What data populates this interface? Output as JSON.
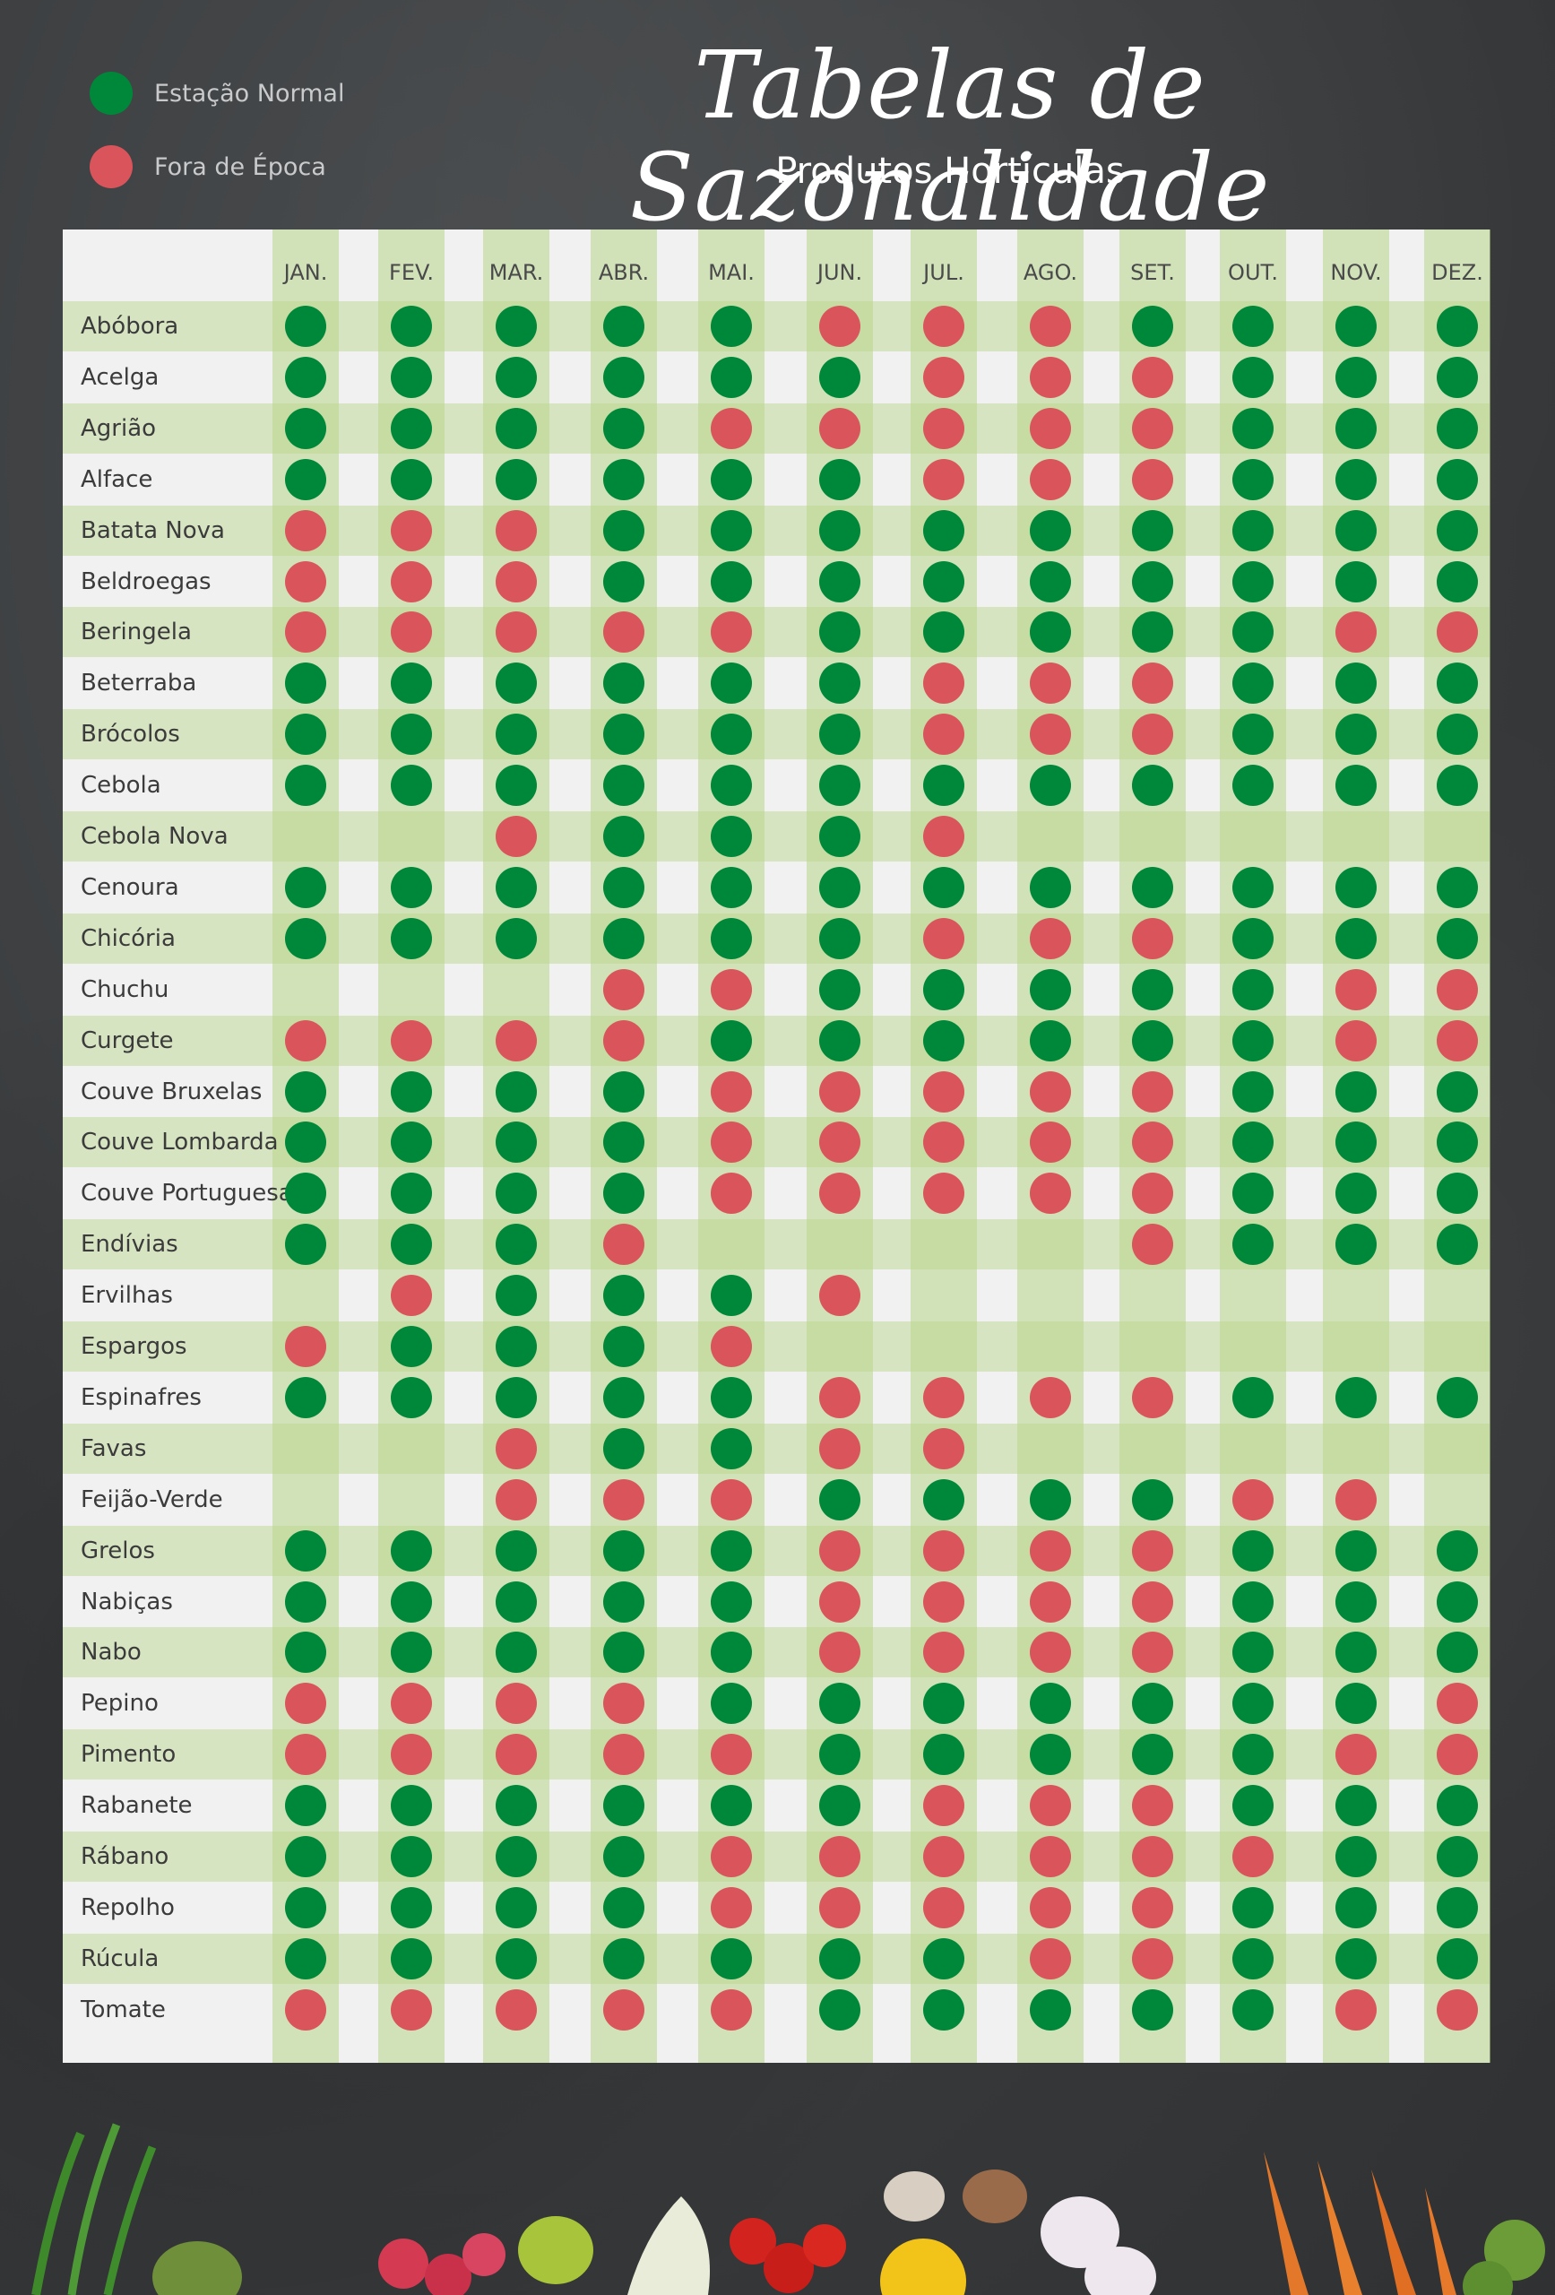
{
  "legend": [
    {
      "label": "Estação Normal",
      "color": "#00883a"
    },
    {
      "label": "Fora de Época",
      "color": "#d9555b"
    }
  ],
  "title": "Tabelas de Sazonalidade",
  "subtitle": "Produtos Hortículas",
  "colors": {
    "green": "#00883a",
    "red": "#d9555b"
  },
  "months": [
    "JAN.",
    "FEV.",
    "MAR.",
    "ABR.",
    "MAI.",
    "JUN.",
    "JUL.",
    "AGO.",
    "SET.",
    "OUT.",
    "NOV.",
    "DEZ."
  ],
  "rows": [
    {
      "name": "Abóbora",
      "cells": "GGGGGRRRGGGG"
    },
    {
      "name": "Acelga",
      "cells": "GGGGGGRRRGGG"
    },
    {
      "name": "Agrião",
      "cells": "GGGGRRRRRGGG"
    },
    {
      "name": "Alface",
      "cells": "GGGGGGRRRGGG"
    },
    {
      "name": "Batata Nova",
      "cells": "RRRGGGGGGGGG"
    },
    {
      "name": "Beldroegas",
      "cells": "RRRGGGGGGGGG"
    },
    {
      "name": "Beringela",
      "cells": "RRRRRGGGGGRR"
    },
    {
      "name": "Beterraba",
      "cells": "GGGGGGRRRGGG"
    },
    {
      "name": "Brócolos",
      "cells": "GGGGGGRRRGGG"
    },
    {
      "name": "Cebola",
      "cells": "GGGGGGGGGGGG"
    },
    {
      "name": "Cebola Nova",
      "cells": "--RGGGR-----"
    },
    {
      "name": "Cenoura",
      "cells": "GGGGGGGGGGGG"
    },
    {
      "name": "Chicória",
      "cells": "GGGGGGRRRGGG"
    },
    {
      "name": "Chuchu",
      "cells": "---RRGGGGGRR"
    },
    {
      "name": "Curgete",
      "cells": "RRRRGGGGGGRR"
    },
    {
      "name": "Couve Bruxelas",
      "cells": "GGGGRRRRRGGG"
    },
    {
      "name": "Couve Lombarda",
      "cells": "GGGGRRRRRGGG"
    },
    {
      "name": "Couve Portuguesa",
      "cells": "GGGGRRRRRGGG"
    },
    {
      "name": "Endívias",
      "cells": "GGGR----RGGG"
    },
    {
      "name": "Ervilhas",
      "cells": "-RGGGR------"
    },
    {
      "name": "Espargos",
      "cells": "RGGGR-------"
    },
    {
      "name": "Espinafres",
      "cells": "GGGGGRRRRGGG"
    },
    {
      "name": "Favas",
      "cells": "--RGGRR-----"
    },
    {
      "name": "Feijão-Verde",
      "cells": "--RRRGGGGRR-"
    },
    {
      "name": "Grelos",
      "cells": "GGGGGRRRRGGG"
    },
    {
      "name": "Nabiças",
      "cells": "GGGGGRRRRGGG"
    },
    {
      "name": "Nabo",
      "cells": "GGGGGRRRRGGG"
    },
    {
      "name": "Pepino",
      "cells": "RRRRGGGGGGGR"
    },
    {
      "name": "Pimento",
      "cells": "RRRRRGGGGGRR"
    },
    {
      "name": "Rabanete",
      "cells": "GGGGGGRRRGGG"
    },
    {
      "name": "Rábano",
      "cells": "GGGGRRRRRRGG"
    },
    {
      "name": "Repolho",
      "cells": "GGGGRRRRRGGG"
    },
    {
      "name": "Rúcula",
      "cells": "GGGGGGGRRGGG"
    },
    {
      "name": "Tomate",
      "cells": "RRRRRGGGGGRR"
    }
  ]
}
